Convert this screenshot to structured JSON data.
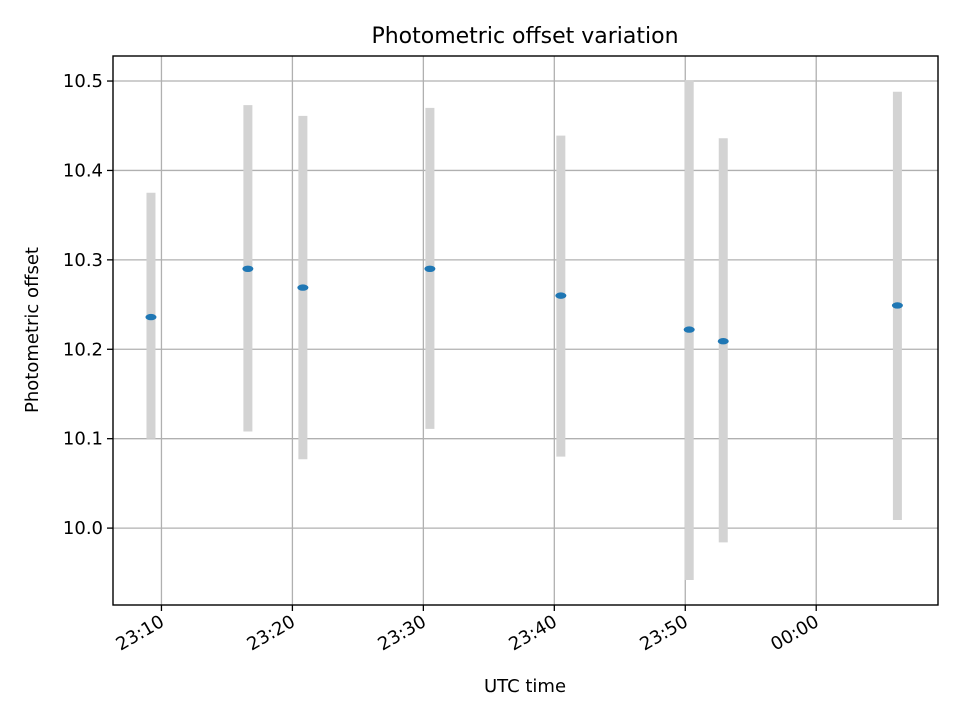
{
  "chart_data": {
    "type": "scatter",
    "title": "Photometric offset variation",
    "xlabel": "UTC time",
    "ylabel": "Photometric offset",
    "x_type": "time",
    "x_ticks": [
      "23:10",
      "23:20",
      "23:30",
      "23:40",
      "23:50",
      "00:00"
    ],
    "y_ticks": [
      10.0,
      10.1,
      10.2,
      10.3,
      10.4,
      10.5
    ],
    "xlim": [
      "23:06.3",
      "00:09.3"
    ],
    "ylim": [
      9.914,
      10.528
    ],
    "grid": true,
    "marker_color": "#1f77b4",
    "errorbar_color": "#d3d3d3",
    "series": [
      {
        "points": [
          {
            "x": "23:09.2",
            "y": 10.236,
            "err_low": 10.1,
            "err_high": 10.375
          },
          {
            "x": "23:16.6",
            "y": 10.29,
            "err_low": 10.108,
            "err_high": 10.473
          },
          {
            "x": "23:20.8",
            "y": 10.269,
            "err_low": 10.077,
            "err_high": 10.461
          },
          {
            "x": "23:30.5",
            "y": 10.29,
            "err_low": 10.111,
            "err_high": 10.47
          },
          {
            "x": "23:40.5",
            "y": 10.26,
            "err_low": 10.08,
            "err_high": 10.439
          },
          {
            "x": "23:50.3",
            "y": 10.222,
            "err_low": 9.942,
            "err_high": 10.501
          },
          {
            "x": "23:52.9",
            "y": 10.209,
            "err_low": 9.984,
            "err_high": 10.436
          },
          {
            "x": "00:06.2",
            "y": 10.249,
            "err_low": 10.009,
            "err_high": 10.488
          }
        ]
      }
    ]
  }
}
